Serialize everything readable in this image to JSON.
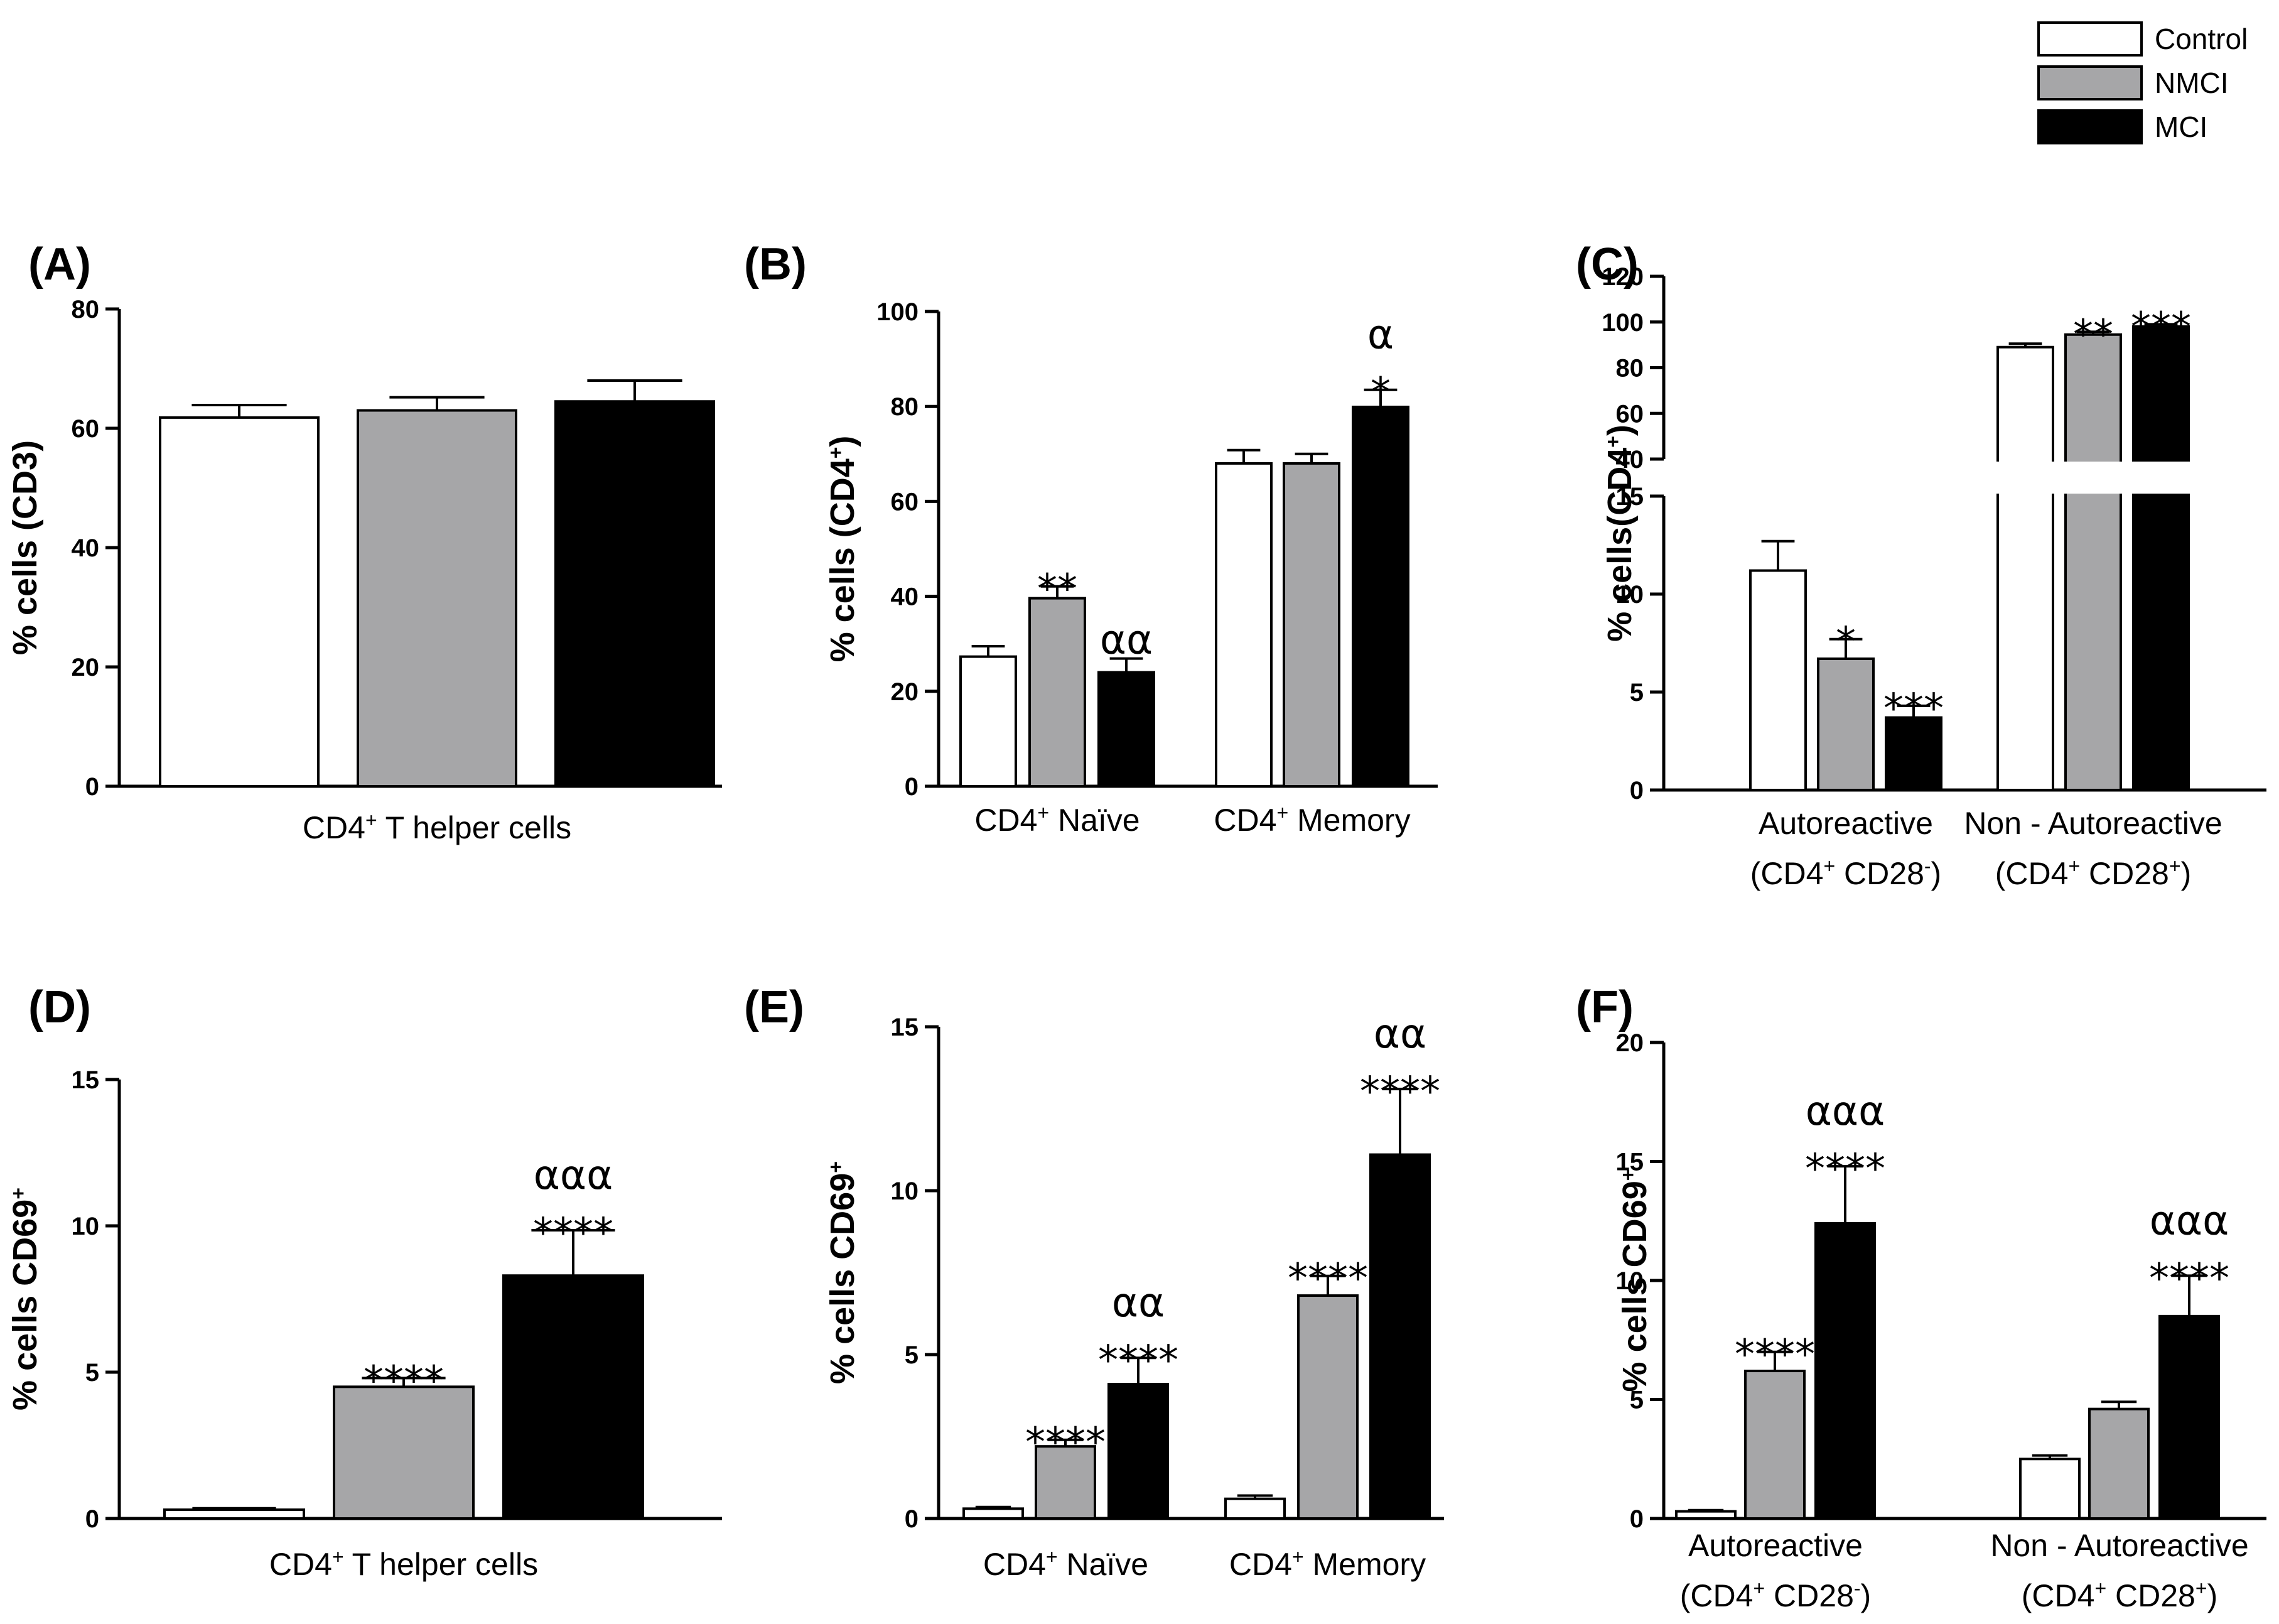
{
  "legend": [
    {
      "name": "Control",
      "color": "#ffffff"
    },
    {
      "name": "NMCI",
      "color": "#a6a6a8"
    },
    {
      "name": "MCI",
      "color": "#000000"
    }
  ],
  "chart_data": [
    {
      "panel": "(A)",
      "type": "bar",
      "ylabel": "% cells (CD3)",
      "ylim": [
        0,
        80
      ],
      "yticks": [
        0,
        20,
        40,
        60,
        80
      ],
      "categories": [
        {
          "label": "CD4",
          "sup": "+",
          "rest": " T helper cells"
        }
      ],
      "series": [
        {
          "name": "Control",
          "values": [
            61.8
          ],
          "errors": [
            2.1
          ]
        },
        {
          "name": "NMCI",
          "values": [
            63.0
          ],
          "errors": [
            2.2
          ]
        },
        {
          "name": "MCI",
          "values": [
            64.5
          ],
          "errors": [
            3.5
          ]
        }
      ],
      "annotations": []
    },
    {
      "panel": "(B)",
      "type": "bar",
      "ylabel": "% cells (CD4+)",
      "ylim": [
        0,
        100
      ],
      "yticks": [
        0,
        20,
        40,
        60,
        80,
        100
      ],
      "categories": [
        {
          "label": "CD4",
          "sup": "+",
          "rest": " Naïve"
        },
        {
          "label": "CD4",
          "sup": "+",
          "rest": " Memory"
        }
      ],
      "series": [
        {
          "name": "Control",
          "values": [
            27.3,
            68.0
          ],
          "errors": [
            2.2,
            2.8
          ]
        },
        {
          "name": "NMCI",
          "values": [
            39.6,
            68.0
          ],
          "errors": [
            2.5,
            2.0
          ]
        },
        {
          "name": "MCI",
          "values": [
            24.0,
            79.9
          ],
          "errors": [
            2.9,
            3.6
          ]
        }
      ],
      "annotations": [
        {
          "cat": 0,
          "series": 1,
          "lines": [
            "**"
          ]
        },
        {
          "cat": 0,
          "series": 2,
          "lines": [
            "αα"
          ]
        },
        {
          "cat": 1,
          "series": 2,
          "lines": [
            "α",
            "*"
          ]
        }
      ]
    },
    {
      "panel": "(C)",
      "type": "bar",
      "ylabel": "% cells(CD4+)",
      "axis_break": {
        "lower_ylim": [
          0,
          15
        ],
        "lower_ticks": [
          0,
          5,
          10,
          15
        ],
        "upper_ylim": [
          40,
          120
        ],
        "upper_ticks": [
          40,
          60,
          80,
          100,
          120
        ]
      },
      "categories": [
        {
          "label": "Autoreactive",
          "line2": "(CD4+ CD28-)"
        },
        {
          "label": "Non - Autoreactive",
          "line2": "(CD4+ CD28+)"
        }
      ],
      "series": [
        {
          "name": "Control",
          "values": [
            11.2,
            89.0
          ],
          "errors": [
            1.5,
            1.5
          ]
        },
        {
          "name": "NMCI",
          "values": [
            6.7,
            94.5
          ],
          "errors": [
            1.0,
            1.2
          ]
        },
        {
          "name": "MCI",
          "values": [
            3.7,
            98.0
          ],
          "errors": [
            0.6,
            1.0
          ]
        }
      ],
      "annotations": [
        {
          "cat": 0,
          "series": 1,
          "lines": [
            "*"
          ]
        },
        {
          "cat": 0,
          "series": 2,
          "lines": [
            "***"
          ]
        },
        {
          "cat": 1,
          "series": 1,
          "lines": [
            "**"
          ]
        },
        {
          "cat": 1,
          "series": 2,
          "lines": [
            "***"
          ]
        }
      ]
    },
    {
      "panel": "(D)",
      "type": "bar",
      "ylabel": "% cells CD69+",
      "ylim": [
        0,
        15
      ],
      "yticks": [
        0,
        5,
        10,
        15
      ],
      "categories": [
        {
          "label": "CD4",
          "sup": "+",
          "rest": " T helper cells"
        }
      ],
      "series": [
        {
          "name": "Control",
          "values": [
            0.3
          ],
          "errors": [
            0.05
          ]
        },
        {
          "name": "NMCI",
          "values": [
            4.5
          ],
          "errors": [
            0.3
          ]
        },
        {
          "name": "MCI",
          "values": [
            8.3
          ],
          "errors": [
            1.55
          ]
        }
      ],
      "annotations": [
        {
          "cat": 0,
          "series": 1,
          "lines": [
            "****"
          ]
        },
        {
          "cat": 0,
          "series": 2,
          "lines": [
            "ααα",
            "****"
          ]
        }
      ]
    },
    {
      "panel": "(E)",
      "type": "bar",
      "ylabel": "% cells CD69+",
      "ylim": [
        0,
        15
      ],
      "yticks": [
        0,
        5,
        10,
        15
      ],
      "categories": [
        {
          "label": "CD4",
          "sup": "+",
          "rest": " Naïve"
        },
        {
          "label": "CD4",
          "sup": "+",
          "rest": " Memory"
        }
      ],
      "series": [
        {
          "name": "Control",
          "values": [
            0.3,
            0.6
          ],
          "errors": [
            0.05,
            0.1
          ]
        },
        {
          "name": "NMCI",
          "values": [
            2.2,
            6.8
          ],
          "errors": [
            0.2,
            0.6
          ]
        },
        {
          "name": "MCI",
          "values": [
            4.1,
            11.1
          ],
          "errors": [
            0.8,
            2.0
          ]
        }
      ],
      "annotations": [
        {
          "cat": 0,
          "series": 1,
          "lines": [
            "****"
          ]
        },
        {
          "cat": 0,
          "series": 2,
          "lines": [
            "αα",
            "****"
          ]
        },
        {
          "cat": 1,
          "series": 1,
          "lines": [
            "****"
          ]
        },
        {
          "cat": 1,
          "series": 2,
          "lines": [
            "αα",
            "****"
          ]
        }
      ]
    },
    {
      "panel": "(F)",
      "type": "bar",
      "ylabel": "% cells CD69+",
      "ylim": [
        0,
        20
      ],
      "yticks": [
        0,
        5,
        10,
        15,
        20
      ],
      "categories": [
        {
          "label": "Autoreactive",
          "line2": "(CD4+ CD28-)"
        },
        {
          "label": "Non - Autoreactive",
          "line2": "(CD4+ CD28+)"
        }
      ],
      "series": [
        {
          "name": "Control",
          "values": [
            0.3,
            2.5
          ],
          "errors": [
            0.05,
            0.15
          ]
        },
        {
          "name": "NMCI",
          "values": [
            6.2,
            4.6
          ],
          "errors": [
            0.8,
            0.3
          ]
        },
        {
          "name": "MCI",
          "values": [
            12.4,
            8.5
          ],
          "errors": [
            2.4,
            1.7
          ]
        }
      ],
      "annotations": [
        {
          "cat": 0,
          "series": 1,
          "lines": [
            "****"
          ]
        },
        {
          "cat": 0,
          "series": 2,
          "lines": [
            "ααα",
            "****"
          ]
        },
        {
          "cat": 1,
          "series": 2,
          "lines": [
            "ααα",
            "****"
          ]
        }
      ]
    }
  ]
}
